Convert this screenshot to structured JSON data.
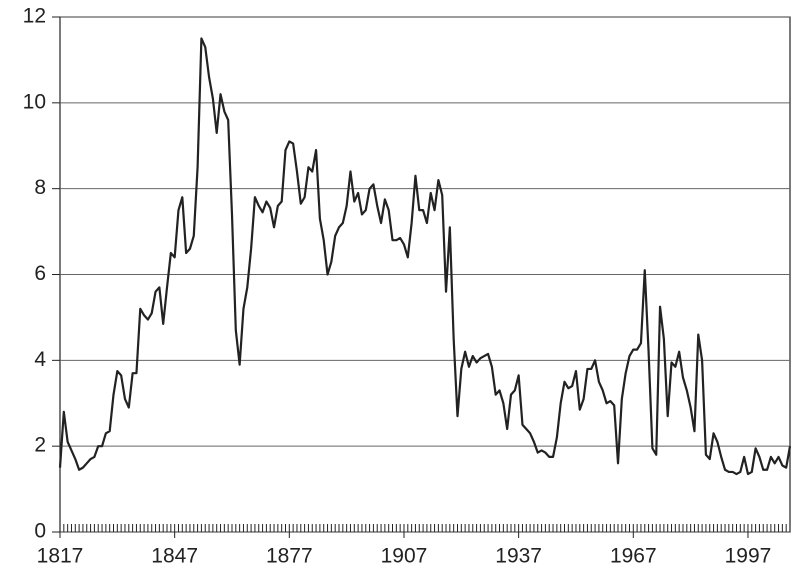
{
  "chart_data": {
    "type": "line",
    "x": [
      1817,
      1818,
      1819,
      1820,
      1821,
      1822,
      1823,
      1824,
      1825,
      1826,
      1827,
      1828,
      1829,
      1830,
      1831,
      1832,
      1833,
      1834,
      1835,
      1836,
      1837,
      1838,
      1839,
      1840,
      1841,
      1842,
      1843,
      1844,
      1845,
      1846,
      1847,
      1848,
      1849,
      1850,
      1851,
      1852,
      1853,
      1854,
      1855,
      1856,
      1857,
      1858,
      1859,
      1860,
      1861,
      1862,
      1863,
      1864,
      1865,
      1866,
      1867,
      1868,
      1869,
      1870,
      1871,
      1872,
      1873,
      1874,
      1875,
      1876,
      1877,
      1878,
      1879,
      1880,
      1881,
      1882,
      1883,
      1884,
      1885,
      1886,
      1887,
      1888,
      1889,
      1890,
      1891,
      1892,
      1893,
      1894,
      1895,
      1896,
      1897,
      1898,
      1899,
      1900,
      1901,
      1902,
      1903,
      1904,
      1905,
      1906,
      1907,
      1908,
      1909,
      1910,
      1911,
      1912,
      1913,
      1914,
      1915,
      1916,
      1917,
      1918,
      1919,
      1920,
      1921,
      1922,
      1923,
      1924,
      1925,
      1926,
      1927,
      1928,
      1929,
      1930,
      1931,
      1932,
      1933,
      1934,
      1935,
      1936,
      1937,
      1938,
      1939,
      1940,
      1941,
      1942,
      1943,
      1944,
      1945,
      1946,
      1947,
      1948,
      1949,
      1950,
      1951,
      1952,
      1953,
      1954,
      1955,
      1956,
      1957,
      1958,
      1959,
      1960,
      1961,
      1962,
      1963,
      1964,
      1965,
      1966,
      1967,
      1968,
      1969,
      1970,
      1971,
      1972,
      1973,
      1974,
      1975,
      1976,
      1977,
      1978,
      1979,
      1980,
      1981,
      1982,
      1983,
      1984,
      1985,
      1986,
      1987,
      1988,
      1989,
      1990,
      1991,
      1992,
      1993,
      1994,
      1995,
      1996,
      1997,
      1998,
      1999,
      2000,
      2001,
      2002,
      2003,
      2004,
      2005,
      2006,
      2007,
      2008
    ],
    "series": [
      {
        "color": "#222222",
        "values": [
          1.5,
          2.8,
          2.1,
          1.9,
          1.7,
          1.45,
          1.5,
          1.6,
          1.7,
          1.75,
          2.0,
          2.0,
          2.3,
          2.35,
          3.2,
          3.75,
          3.65,
          3.1,
          2.9,
          3.7,
          3.7,
          5.2,
          5.05,
          4.95,
          5.1,
          5.6,
          5.7,
          4.85,
          5.7,
          6.5,
          6.4,
          7.5,
          7.8,
          6.5,
          6.6,
          6.9,
          8.5,
          11.5,
          11.3,
          10.6,
          10.1,
          9.3,
          10.2,
          9.8,
          9.6,
          7.4,
          4.7,
          3.9,
          5.2,
          5.7,
          6.6,
          7.8,
          7.6,
          7.45,
          7.7,
          7.55,
          7.1,
          7.6,
          7.7,
          8.9,
          9.1,
          9.05,
          8.4,
          7.65,
          7.8,
          8.5,
          8.4,
          8.9,
          7.3,
          6.8,
          6.0,
          6.3,
          6.9,
          7.1,
          7.2,
          7.6,
          8.4,
          7.7,
          7.9,
          7.4,
          7.5,
          8.0,
          8.1,
          7.6,
          7.2,
          7.75,
          7.5,
          6.8,
          6.8,
          6.85,
          6.7,
          6.4,
          7.2,
          8.3,
          7.5,
          7.5,
          7.2,
          7.9,
          7.5,
          8.2,
          7.85,
          5.6,
          7.1,
          4.5,
          2.7,
          3.8,
          4.2,
          3.85,
          4.1,
          3.95,
          4.05,
          4.1,
          4.15,
          3.85,
          3.2,
          3.3,
          3.0,
          2.4,
          3.2,
          3.3,
          3.65,
          2.5,
          2.4,
          2.3,
          2.1,
          1.85,
          1.9,
          1.85,
          1.75,
          1.75,
          2.2,
          3.0,
          3.5,
          3.35,
          3.4,
          3.75,
          2.85,
          3.1,
          3.8,
          3.8,
          4.0,
          3.5,
          3.3,
          3.0,
          3.05,
          2.95,
          1.6,
          3.1,
          3.7,
          4.1,
          4.25,
          4.25,
          4.4,
          6.1,
          4.2,
          1.95,
          1.8,
          5.25,
          4.5,
          2.7,
          3.95,
          3.85,
          4.2,
          3.6,
          3.3,
          2.9,
          2.35,
          4.6,
          4.0,
          1.8,
          1.7,
          2.3,
          2.1,
          1.75,
          1.45,
          1.4,
          1.4,
          1.35,
          1.4,
          1.75,
          1.35,
          1.4,
          1.95,
          1.75,
          1.45,
          1.45,
          1.75,
          1.6,
          1.75,
          1.55,
          1.5,
          2.0
        ]
      }
    ],
    "xlim": [
      1817,
      2008
    ],
    "xticks": [
      1817,
      1847,
      1877,
      1907,
      1937,
      1967,
      1997
    ],
    "ylim": [
      0,
      12
    ],
    "yticks": [
      0,
      2,
      4,
      6,
      8,
      10,
      12
    ],
    "grid": true
  }
}
